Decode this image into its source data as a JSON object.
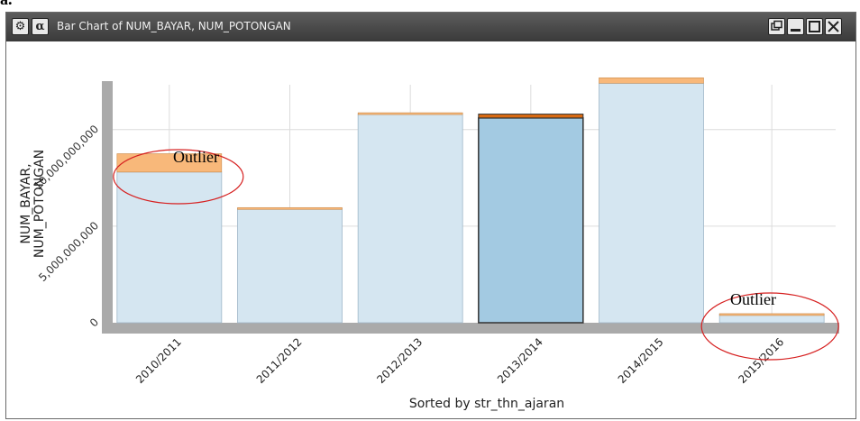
{
  "page_label": "a.",
  "window": {
    "title": "Bar Chart of NUM_BAYAR, NUM_POTONGAN",
    "gear_icon": "gear-icon",
    "alpha_label": "α",
    "controls": [
      "restore-icon",
      "minimize-icon",
      "maximize-icon",
      "close-icon"
    ]
  },
  "colors": {
    "bayar": "#d5e6f1",
    "bayar_selected": "#a3cae2",
    "potongan": "#f8b87a",
    "potongan_selected": "#d96a12",
    "axis": "#aaaaaa",
    "annotation_circle": "#d62020"
  },
  "chart_data": {
    "type": "bar",
    "stacked": true,
    "categories": [
      "2010/2011",
      "2011/2012",
      "2012/2013",
      "2013/2014",
      "2014/2015",
      "2015/2016"
    ],
    "series": [
      {
        "name": "NUM_BAYAR",
        "values": [
          7800000000,
          5900000000,
          10800000000,
          10600000000,
          12400000000,
          450000000
        ]
      },
      {
        "name": "NUM_POTONGAN",
        "values": [
          950000000,
          60000000,
          70000000,
          200000000,
          280000000,
          20000000
        ]
      }
    ],
    "selected_category": "2013/2014",
    "ylabel": "NUM_BAYAR,\nNUM_POTONGAN",
    "xlabel": "Sorted by str_thn_ajaran",
    "yticks": [
      {
        "value": 0,
        "label": "0"
      },
      {
        "value": 5000000000,
        "label": "5,000,000,000"
      },
      {
        "value": 10000000000,
        "label": "10,000,000,000"
      }
    ],
    "ylim": [
      0,
      12600000000
    ],
    "grid": true,
    "annotations": [
      {
        "text": "Outlier",
        "category": "2010/2011"
      },
      {
        "text": "Outlier",
        "category": "2015/2016"
      }
    ]
  }
}
